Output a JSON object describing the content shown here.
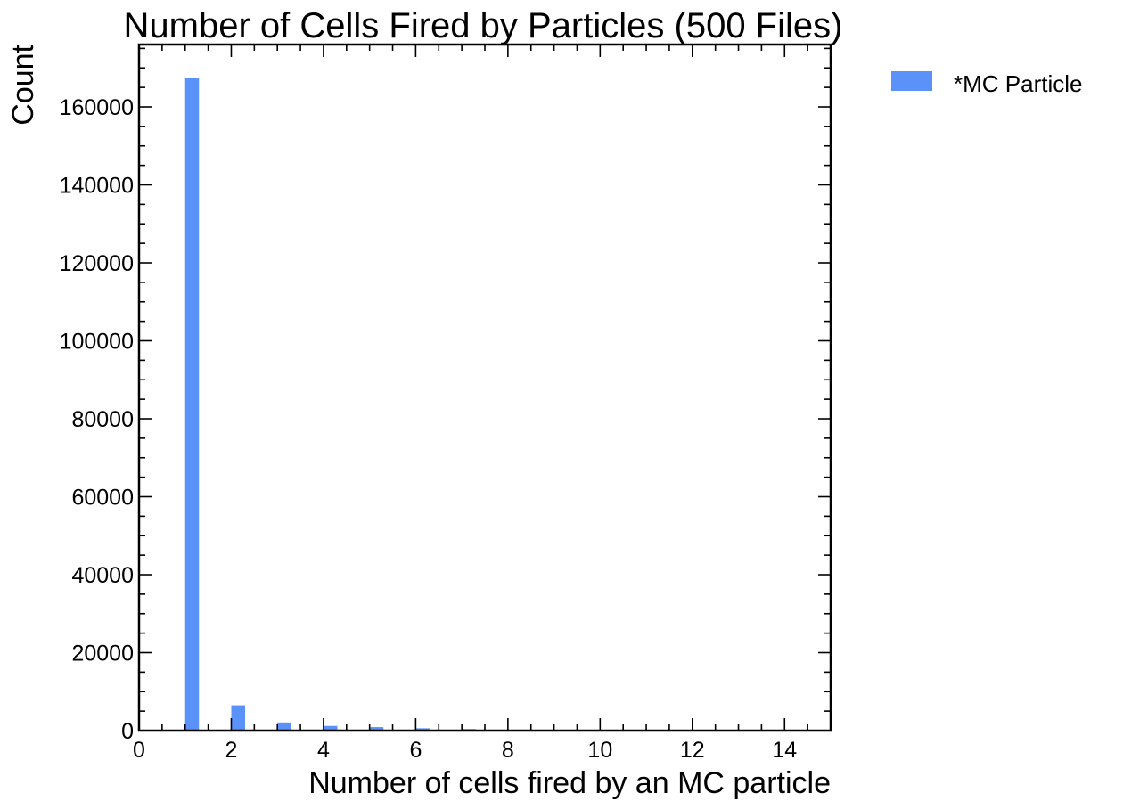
{
  "chart_data": {
    "type": "bar",
    "title": "Number of Cells Fired by Particles (500 Files)",
    "xlabel": "Number of cells fired by an MC particle",
    "ylabel": "Count",
    "xlim": [
      0,
      15
    ],
    "ylim": [
      0,
      176000
    ],
    "x_ticks": [
      0,
      2,
      4,
      6,
      8,
      10,
      12,
      14
    ],
    "y_ticks": [
      0,
      20000,
      40000,
      60000,
      80000,
      100000,
      120000,
      140000,
      160000
    ],
    "x_minor_step": 0.5,
    "y_minor_step": 5000,
    "grid": false,
    "legend_position": "outside-top-right",
    "bar_width": 0.3,
    "series": [
      {
        "name": "*MC Particle",
        "color": "#5b92fa",
        "points": [
          {
            "x": 1,
            "y": 167500
          },
          {
            "x": 2,
            "y": 6500
          },
          {
            "x": 3,
            "y": 2100
          },
          {
            "x": 4,
            "y": 1200
          },
          {
            "x": 5,
            "y": 900
          },
          {
            "x": 6,
            "y": 600
          },
          {
            "x": 7,
            "y": 400
          }
        ]
      }
    ]
  }
}
